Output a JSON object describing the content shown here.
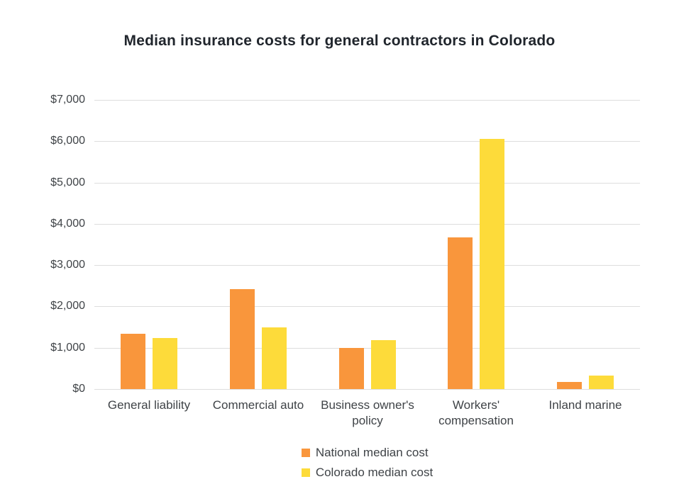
{
  "page": {
    "background": "#ffffff"
  },
  "chart_data": {
    "type": "bar",
    "title": "Median insurance costs for general contractors in Colorado",
    "categories": [
      "General liability",
      "Commercial auto",
      "Business owner's policy",
      "Workers' compensation",
      "Inland marine"
    ],
    "series": [
      {
        "name": "National median cost",
        "color": "#f9963c",
        "values": [
          1340,
          2420,
          1000,
          3680,
          170
        ]
      },
      {
        "name": "Colorado median cost",
        "color": "#fddb3a",
        "values": [
          1240,
          1500,
          1190,
          6060,
          330
        ]
      }
    ],
    "xlabel": "",
    "ylabel": "",
    "ylim": [
      0,
      7000
    ],
    "ytick_step": 1000,
    "ytick_prefix": "$",
    "grid": true,
    "legend_position": "bottom",
    "colors": {
      "gridline": "#dddddd",
      "axis_text": "#3f4347",
      "title_text": "#21262d"
    }
  }
}
